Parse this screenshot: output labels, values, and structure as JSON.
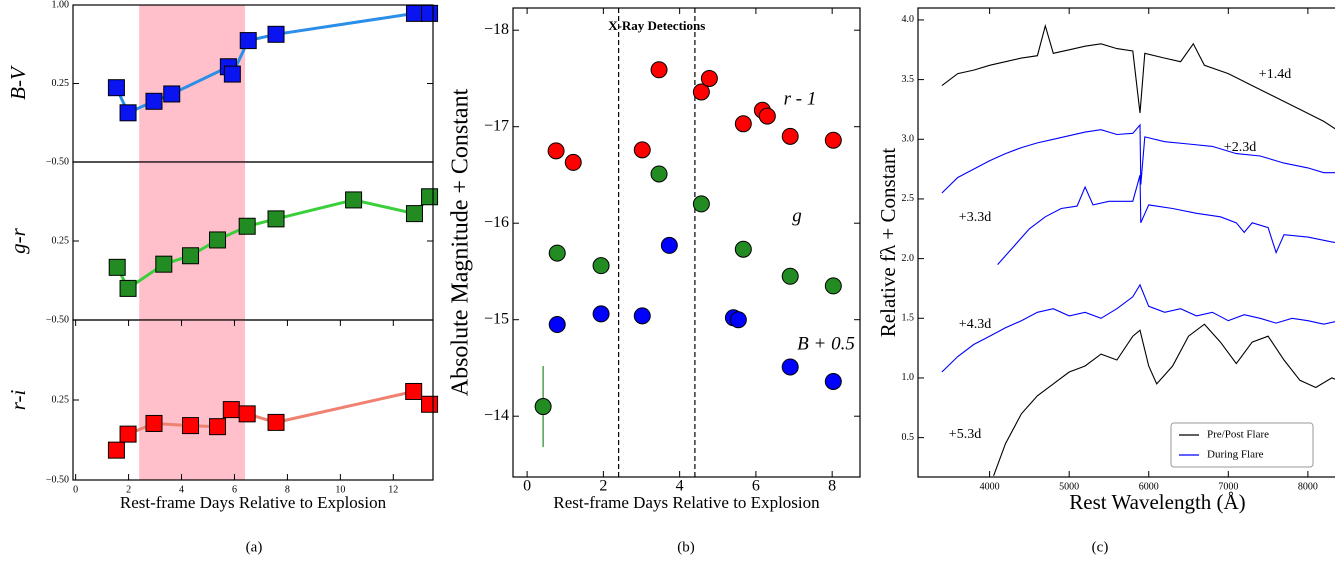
{
  "chart_data": [
    {
      "type": "line",
      "ylabel": "B-V",
      "xlim": [
        -0.1,
        13.5
      ],
      "ylim": [
        -0.5,
        1
      ],
      "yticks": [
        {
          "value": -0.5,
          "label": "−0.50"
        },
        {
          "value": 0.25,
          "label": "0.25"
        },
        {
          "value": 1,
          "label": "1.00"
        }
      ],
      "highlight": [
        2.4,
        6.4
      ],
      "highlight_color": "#ffc0cb",
      "series": [
        {
          "color": "#2b8ee8",
          "marker_color": "#0a14f0",
          "marker": "square",
          "x": [
            1.54,
            1.98,
            2.96,
            3.63,
            5.77,
            5.92,
            6.52,
            7.57,
            12.8,
            13.37
          ],
          "values": [
            0.21,
            -0.03,
            0.08,
            0.15,
            0.41,
            0.34,
            0.66,
            0.72,
            0.92,
            0.92
          ]
        }
      ]
    },
    {
      "type": "line",
      "ylabel": "g-r",
      "xlim": [
        -0.1,
        13.5
      ],
      "ylim": [
        -0.5,
        1
      ],
      "yticks": [
        {
          "value": -0.5,
          "label": "−0.50"
        },
        {
          "value": 0.25,
          "label": "0.25"
        }
      ],
      "highlight": [
        2.4,
        6.4
      ],
      "highlight_color": "#ffc0cb",
      "series": [
        {
          "color": "#3ccf3c",
          "marker_color": "#228b22",
          "marker": "square",
          "x": [
            1.57,
            1.98,
            3.33,
            4.34,
            5.36,
            6.48,
            7.57,
            10.5,
            12.8,
            13.37
          ],
          "values": [
            0.0,
            -0.2,
            0.03,
            0.11,
            0.26,
            0.39,
            0.46,
            0.64,
            0.51,
            0.67
          ]
        }
      ]
    },
    {
      "type": "line",
      "ylabel": "r-i",
      "xlabel": "Rest-frame Days Relative to Explosion",
      "caption": "(a)",
      "xlim": [
        -0.1,
        13.5
      ],
      "xticks": [
        0,
        2,
        4,
        6,
        8,
        10,
        12
      ],
      "ylim": [
        -0.5,
        1
      ],
      "yticks": [
        {
          "value": -0.5,
          "label": "−0.50"
        },
        {
          "value": 0.25,
          "label": "0.25"
        }
      ],
      "highlight": [
        2.4,
        6.4
      ],
      "highlight_color": "#ffc0cb",
      "series": [
        {
          "color": "#f08070",
          "marker_color": "#ff0000",
          "marker": "square",
          "x": [
            1.54,
            1.98,
            2.96,
            4.34,
            5.36,
            5.88,
            6.48,
            7.57,
            12.77,
            13.37
          ],
          "values": [
            -0.22,
            -0.07,
            0.03,
            0.01,
            0.0,
            0.16,
            0.12,
            0.04,
            0.33,
            0.21
          ]
        }
      ]
    },
    {
      "type": "scatter",
      "title": "X-Ray Detections",
      "ylabel": "Absolute Magnitude + Constant",
      "xlabel": "Rest-frame Days Relative to Explosion",
      "caption": "(b)",
      "xlim": [
        -0.37,
        8.73
      ],
      "xticks": [
        0,
        2,
        4,
        6,
        8
      ],
      "ylim": [
        -13.37,
        -18.23
      ],
      "yticks": [
        {
          "value": -14,
          "label": "−14"
        },
        {
          "value": -15,
          "label": "−15"
        },
        {
          "value": -16,
          "label": "−16"
        },
        {
          "value": -17,
          "label": "−17"
        },
        {
          "value": -18,
          "label": "−18"
        }
      ],
      "vlines": [
        2.4,
        4.4
      ],
      "series": [
        {
          "name": "r - 1",
          "color": "#ff0000",
          "x": [
            0.76,
            1.21,
            3.02,
            3.46,
            4.57,
            4.78,
            5.67,
            6.17,
            6.3,
            6.9,
            8.03
          ],
          "values": [
            -16.75,
            -16.63,
            -16.76,
            -17.59,
            -17.36,
            -17.5,
            -17.03,
            -17.17,
            -17.11,
            -16.9,
            -16.86
          ]
        },
        {
          "name": "g",
          "color": "#228b22",
          "x": [
            0.79,
            1.94,
            3.46,
            4.57,
            5.67,
            6.9,
            8.03
          ],
          "values": [
            -15.69,
            -15.56,
            -16.51,
            -16.2,
            -15.73,
            -15.45,
            -15.35
          ]
        },
        {
          "color": "#228b22",
          "x": [
            0.42
          ],
          "values": [
            -14.1
          ],
          "errors": [
            0.42
          ]
        },
        {
          "name": "B + 0.5",
          "color": "#0000ff",
          "x": [
            0.79,
            1.94,
            3.02,
            3.73,
            5.41,
            5.54,
            6.9,
            8.03
          ],
          "values": [
            -14.95,
            -15.06,
            -15.04,
            -15.77,
            -15.02,
            -15.0,
            -14.51,
            -14.36
          ]
        }
      ]
    },
    {
      "type": "spectra",
      "ylabel": "Relative fλ + Constant",
      "xlabel": "Rest Wavelength (Å)",
      "caption": "(c)",
      "xlim": [
        3100,
        9120
      ],
      "xticks": [
        4000,
        5000,
        6000,
        7000,
        8000
      ],
      "ylim": [
        0.17,
        4.1
      ],
      "yticks": [
        {
          "value": 0.5,
          "label": "0.5"
        },
        {
          "value": 1,
          "label": "1.0"
        },
        {
          "value": 1.5,
          "label": "1.5"
        },
        {
          "value": 2,
          "label": "2.0"
        },
        {
          "value": 2.5,
          "label": "2.5"
        },
        {
          "value": 3,
          "label": "3.0"
        },
        {
          "value": 3.5,
          "label": "3.5"
        },
        {
          "value": 4,
          "label": "4.0"
        }
      ],
      "legend": [
        {
          "name": "Pre/Post Flare",
          "color": "#000000"
        },
        {
          "name": "During Flare",
          "color": "#0000ff"
        }
      ],
      "legend_corner": "lower right",
      "series": [
        {
          "label": "+1.4d",
          "color": "#000000",
          "x": [
            3400,
            3600,
            3800,
            4000,
            4200,
            4400,
            4600,
            4700,
            4800,
            5000,
            5200,
            5400,
            5600,
            5800,
            5890,
            5950,
            6200,
            6400,
            6560,
            6700,
            7000,
            7300,
            7600,
            7900,
            8200,
            8500,
            8750
          ],
          "values": [
            3.45,
            3.55,
            3.58,
            3.62,
            3.65,
            3.68,
            3.7,
            3.95,
            3.72,
            3.75,
            3.78,
            3.8,
            3.76,
            3.74,
            3.22,
            3.72,
            3.68,
            3.65,
            3.8,
            3.62,
            3.55,
            3.45,
            3.35,
            3.25,
            3.15,
            3.02,
            2.92
          ]
        },
        {
          "label": "+2.3d",
          "color": "#0000ff",
          "x": [
            3400,
            3600,
            3800,
            4000,
            4200,
            4400,
            4600,
            4800,
            5000,
            5200,
            5400,
            5600,
            5800,
            5890,
            5900,
            5950,
            6200,
            6500,
            6800,
            7100,
            7400,
            7700,
            8000,
            8200,
            8400
          ],
          "values": [
            2.55,
            2.68,
            2.75,
            2.82,
            2.88,
            2.93,
            2.97,
            3.0,
            3.03,
            3.06,
            3.08,
            3.04,
            3.05,
            3.12,
            2.62,
            3.02,
            2.98,
            2.96,
            2.94,
            2.88,
            2.86,
            2.8,
            2.76,
            2.72,
            2.72
          ]
        },
        {
          "label": "+3.3d",
          "color": "#0000ff",
          "x": [
            4100,
            4300,
            4500,
            4700,
            4900,
            5100,
            5200,
            5300,
            5500,
            5800,
            5890,
            5900,
            6000,
            6300,
            6600,
            6900,
            7100,
            7200,
            7300,
            7500,
            7600,
            7700,
            8000,
            8300,
            8500,
            8750
          ],
          "values": [
            1.95,
            2.1,
            2.25,
            2.35,
            2.42,
            2.44,
            2.6,
            2.45,
            2.48,
            2.48,
            2.7,
            2.3,
            2.45,
            2.42,
            2.38,
            2.35,
            2.3,
            2.22,
            2.3,
            2.26,
            2.05,
            2.2,
            2.18,
            2.14,
            2.12,
            2.1
          ]
        },
        {
          "label": "+4.3d",
          "color": "#0000ff",
          "x": [
            3400,
            3600,
            3800,
            4000,
            4200,
            4400,
            4600,
            4800,
            5000,
            5200,
            5400,
            5600,
            5800,
            5890,
            6000,
            6200,
            6400,
            6600,
            6800,
            7000,
            7200,
            7400,
            7600,
            7800,
            8000,
            8200,
            8400,
            8700
          ],
          "values": [
            1.05,
            1.18,
            1.28,
            1.35,
            1.42,
            1.48,
            1.55,
            1.58,
            1.52,
            1.55,
            1.5,
            1.58,
            1.68,
            1.78,
            1.6,
            1.55,
            1.58,
            1.52,
            1.55,
            1.48,
            1.53,
            1.5,
            1.46,
            1.5,
            1.48,
            1.45,
            1.48,
            1.47
          ]
        },
        {
          "label": "+5.3d",
          "color": "#000000",
          "x": [
            4050,
            4200,
            4400,
            4600,
            4800,
            5000,
            5200,
            5400,
            5600,
            5800,
            5890,
            6000,
            6100,
            6300,
            6500,
            6700,
            6900,
            7100,
            7300,
            7500,
            7700,
            7900,
            8100,
            8300,
            8500,
            8600,
            8750
          ],
          "values": [
            0.18,
            0.45,
            0.7,
            0.85,
            0.95,
            1.05,
            1.1,
            1.2,
            1.15,
            1.35,
            1.4,
            1.1,
            0.95,
            1.1,
            1.35,
            1.45,
            1.3,
            1.12,
            1.3,
            1.35,
            1.15,
            0.98,
            0.92,
            1.0,
            0.95,
            1.0,
            0.8
          ]
        }
      ]
    }
  ]
}
